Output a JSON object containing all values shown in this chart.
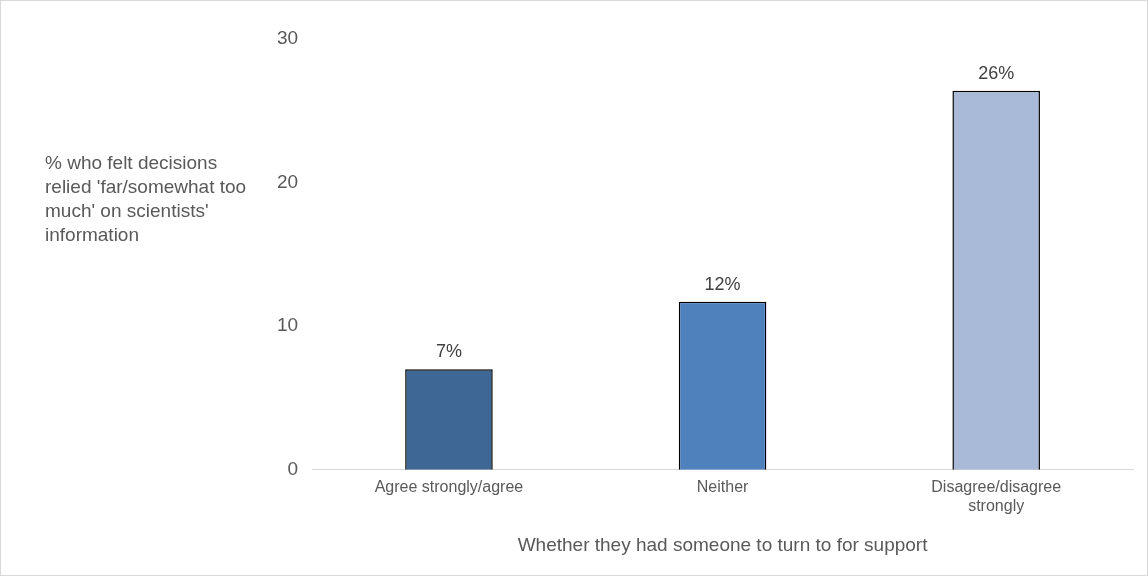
{
  "chart_data": {
    "type": "bar",
    "xlabel": "Whether they had someone to turn to for support",
    "ylabel": "% who felt decisions relied 'far/somewhat too much' on scientists' information",
    "categories": [
      "Agree strongly/agree",
      "Neither",
      "Disagree/disagree strongly"
    ],
    "values": [
      7,
      11.7,
      26.4
    ],
    "value_labels": [
      "7%",
      "12%",
      "26%"
    ],
    "colors": [
      "#3f6796",
      "#4f81bd",
      "#a9b9d8"
    ],
    "ylim": [
      0,
      30
    ],
    "yticks": [
      0,
      10,
      20,
      30
    ],
    "grid": false,
    "legend": false
  }
}
